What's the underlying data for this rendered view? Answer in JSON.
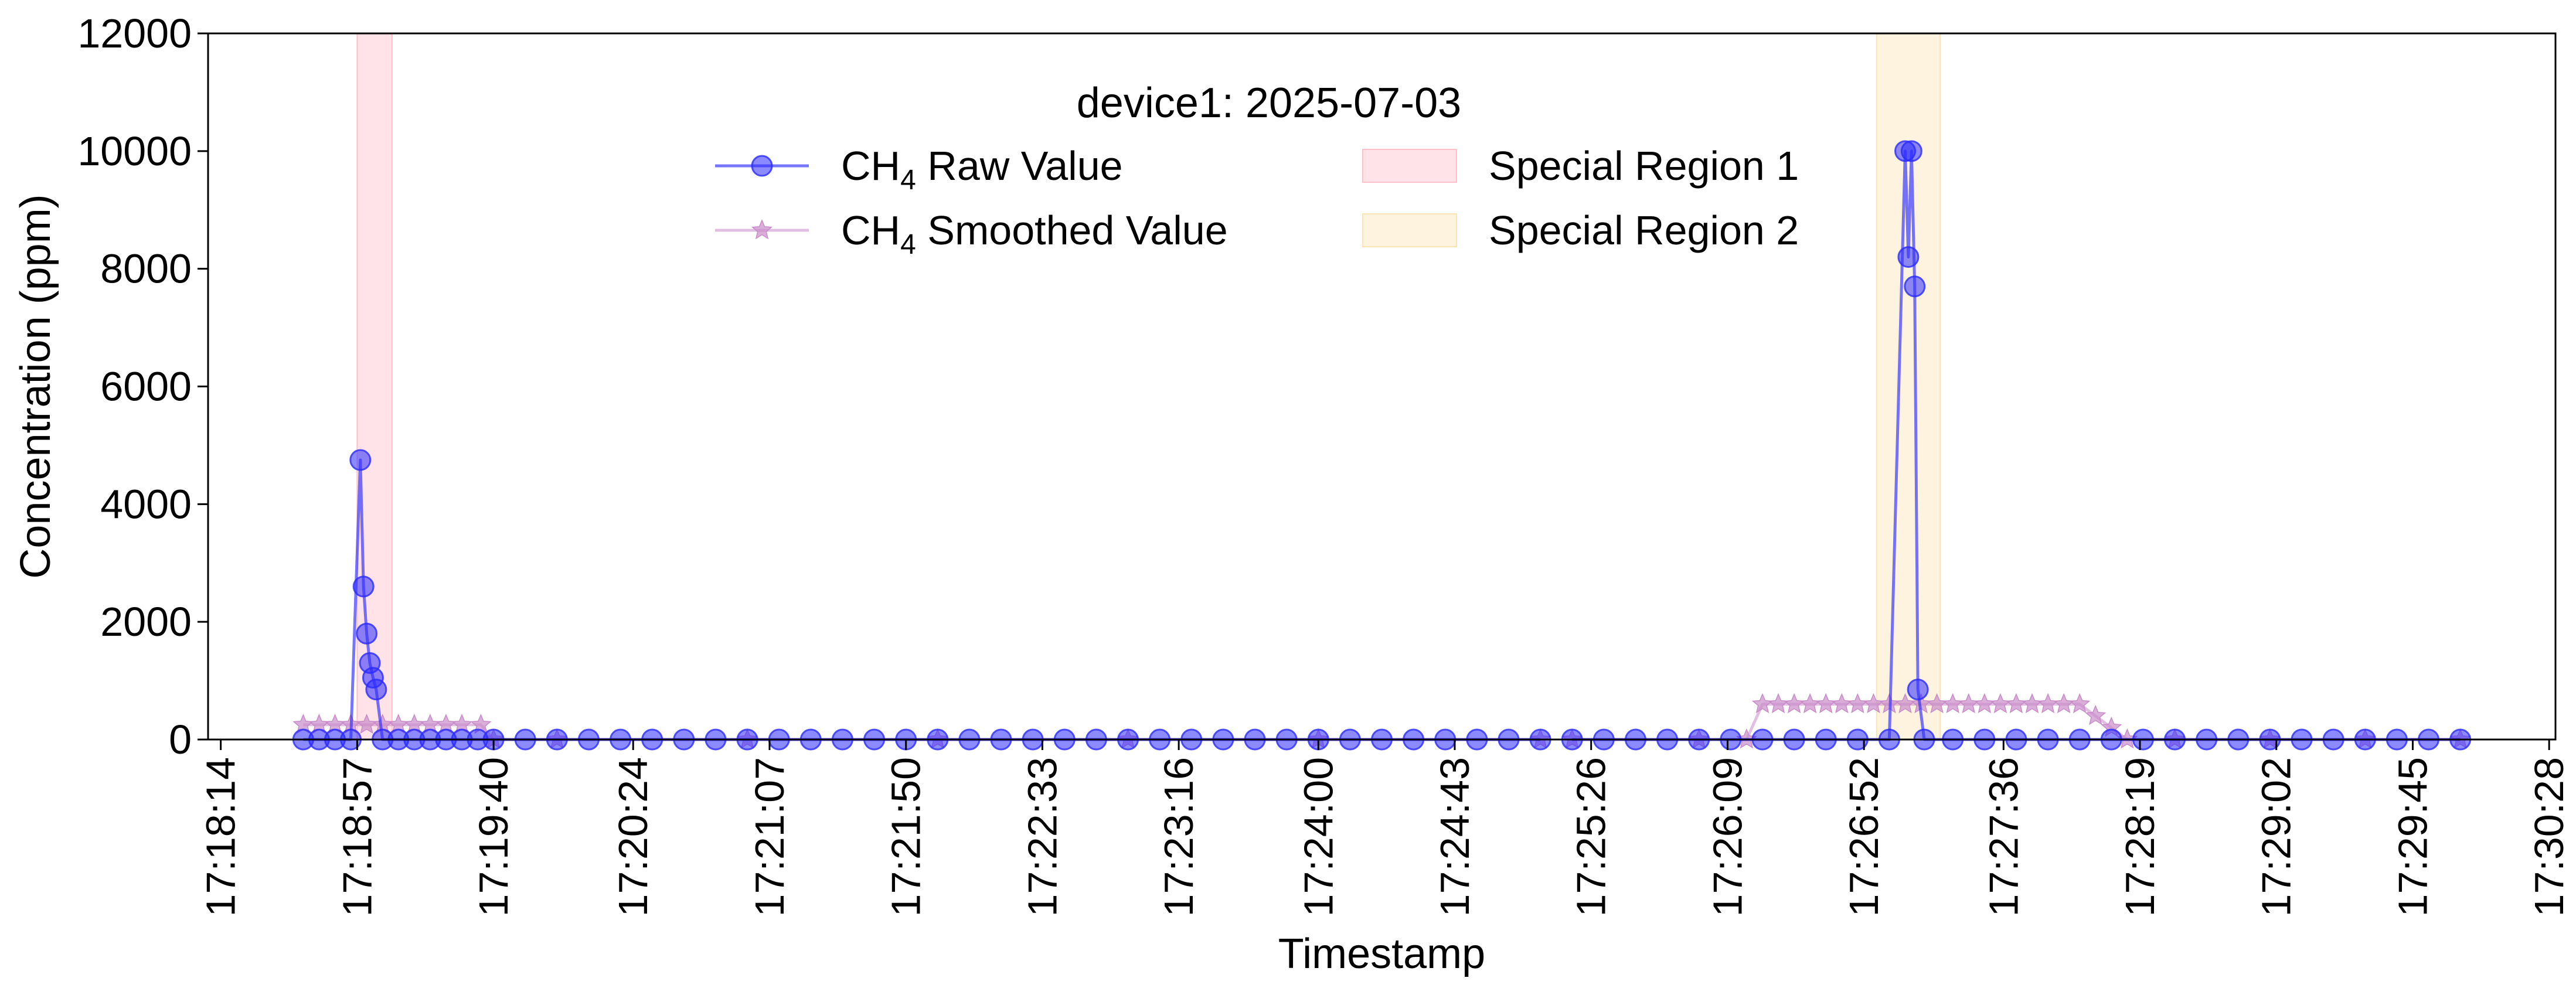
{
  "chart_data": {
    "type": "line",
    "title": "",
    "xlabel": "Timestamp",
    "ylabel": "Concentration (ppm)",
    "ylim": [
      0,
      12000
    ],
    "yticks": [
      "0",
      "2000",
      "4000",
      "6000",
      "8000",
      "10000",
      "12000"
    ],
    "xlim": [
      "17:18:10",
      "17:30:30"
    ],
    "xticks": [
      "17:18:14",
      "17:18:57",
      "17:19:40",
      "17:20:24",
      "17:21:07",
      "17:21:50",
      "17:22:33",
      "17:23:16",
      "17:24:00",
      "17:24:43",
      "17:25:26",
      "17:26:09",
      "17:26:52",
      "17:27:36",
      "17:28:19",
      "17:29:02",
      "17:29:45",
      "17:30:28"
    ],
    "grid": false,
    "legend": {
      "title": "device1: 2025-07-03",
      "placement": "upper-center",
      "columns": 2,
      "entries": [
        {
          "prefix": "CH",
          "sub": "4",
          "suffix": " Raw Value",
          "kind": "line-circle",
          "color": "#2b2bff"
        },
        {
          "prefix": "CH",
          "sub": "4",
          "suffix": "  Smoothed Value",
          "kind": "line-star",
          "color": "#c98bc9"
        },
        {
          "label": "Special Region 1",
          "kind": "patch",
          "color": "#ffc0cb"
        },
        {
          "label": "Special Region 2",
          "kind": "patch",
          "color": "#fde4b6"
        }
      ]
    },
    "regions": [
      {
        "name": "Special Region 1",
        "start": "17:18:57",
        "end": "17:19:08",
        "color": "#ffc0cb"
      },
      {
        "name": "Special Region 2",
        "start": "17:26:56",
        "end": "17:27:16",
        "color": "#fde4b6"
      }
    ],
    "series": [
      {
        "name": "CH4 Raw Value",
        "color": "#2b2bff",
        "marker": "circle",
        "segments": [
          [
            [
              "17:18:40",
              0
            ],
            [
              "17:18:45",
              0
            ],
            [
              "17:18:50",
              0
            ],
            [
              "17:18:55",
              0
            ],
            [
              "17:18:58",
              4750
            ],
            [
              "17:18:59",
              2600
            ],
            [
              "17:19:00",
              1800
            ],
            [
              "17:19:01",
              1300
            ],
            [
              "17:19:02",
              1050
            ],
            [
              "17:19:03",
              850
            ],
            [
              "17:19:05",
              0
            ],
            [
              "17:19:10",
              0
            ],
            [
              "17:19:15",
              0
            ],
            [
              "17:19:20",
              0
            ],
            [
              "17:19:25",
              0
            ],
            [
              "17:19:30",
              0
            ],
            [
              "17:19:35",
              0
            ],
            [
              "17:19:40",
              0
            ],
            [
              "17:19:50",
              0
            ],
            [
              "17:20:00",
              0
            ],
            [
              "17:20:10",
              0
            ],
            [
              "17:20:20",
              0
            ],
            [
              "17:20:30",
              0
            ],
            [
              "17:20:40",
              0
            ],
            [
              "17:20:50",
              0
            ],
            [
              "17:21:00",
              0
            ],
            [
              "17:21:10",
              0
            ],
            [
              "17:21:20",
              0
            ],
            [
              "17:21:30",
              0
            ],
            [
              "17:21:40",
              0
            ],
            [
              "17:21:50",
              0
            ],
            [
              "17:22:00",
              0
            ],
            [
              "17:22:10",
              0
            ],
            [
              "17:22:20",
              0
            ],
            [
              "17:22:30",
              0
            ],
            [
              "17:22:40",
              0
            ],
            [
              "17:22:50",
              0
            ],
            [
              "17:23:00",
              0
            ],
            [
              "17:23:10",
              0
            ],
            [
              "17:23:20",
              0
            ],
            [
              "17:23:30",
              0
            ],
            [
              "17:23:40",
              0
            ],
            [
              "17:23:50",
              0
            ],
            [
              "17:24:00",
              0
            ],
            [
              "17:24:10",
              0
            ],
            [
              "17:24:20",
              0
            ],
            [
              "17:24:30",
              0
            ],
            [
              "17:24:40",
              0
            ],
            [
              "17:24:50",
              0
            ],
            [
              "17:25:00",
              0
            ],
            [
              "17:25:10",
              0
            ]
          ],
          [
            [
              "17:25:20",
              0
            ],
            [
              "17:25:30",
              0
            ],
            [
              "17:25:40",
              0
            ],
            [
              "17:25:50",
              0
            ],
            [
              "17:26:00",
              0
            ],
            [
              "17:26:10",
              0
            ],
            [
              "17:26:20",
              0
            ],
            [
              "17:26:30",
              0
            ],
            [
              "17:26:40",
              0
            ],
            [
              "17:26:50",
              0
            ],
            [
              "17:27:00",
              0
            ],
            [
              "17:27:05",
              10000
            ],
            [
              "17:27:06",
              8200
            ],
            [
              "17:27:07",
              10000
            ],
            [
              "17:27:08",
              7700
            ],
            [
              "17:27:09",
              850
            ],
            [
              "17:27:11",
              0
            ],
            [
              "17:27:20",
              0
            ],
            [
              "17:27:30",
              0
            ],
            [
              "17:27:40",
              0
            ],
            [
              "17:27:50",
              0
            ],
            [
              "17:28:00",
              0
            ],
            [
              "17:28:10",
              0
            ],
            [
              "17:28:20",
              0
            ],
            [
              "17:28:30",
              0
            ],
            [
              "17:28:40",
              0
            ],
            [
              "17:28:50",
              0
            ],
            [
              "17:29:00",
              0
            ],
            [
              "17:29:10",
              0
            ],
            [
              "17:29:20",
              0
            ],
            [
              "17:29:30",
              0
            ],
            [
              "17:29:40",
              0
            ],
            [
              "17:29:50",
              0
            ],
            [
              "17:30:00",
              0
            ]
          ]
        ]
      },
      {
        "name": "CH4 Smoothed Value",
        "color": "#c98bc9",
        "marker": "star",
        "segments": [
          [
            [
              "17:18:40",
              250
            ],
            [
              "17:18:45",
              250
            ],
            [
              "17:18:50",
              250
            ],
            [
              "17:18:55",
              250
            ],
            [
              "17:19:00",
              250
            ],
            [
              "17:19:05",
              250
            ],
            [
              "17:19:10",
              250
            ],
            [
              "17:19:15",
              250
            ],
            [
              "17:19:20",
              250
            ],
            [
              "17:19:25",
              250
            ],
            [
              "17:19:30",
              250
            ],
            [
              "17:19:36",
              250
            ],
            [
              "17:19:40",
              0
            ],
            [
              "17:20:00",
              0
            ],
            [
              "17:21:00",
              0
            ],
            [
              "17:22:00",
              0
            ],
            [
              "17:23:00",
              0
            ],
            [
              "17:24:00",
              0
            ],
            [
              "17:25:10",
              0
            ]
          ],
          [
            [
              "17:25:20",
              0
            ],
            [
              "17:26:00",
              0
            ],
            [
              "17:26:15",
              0
            ],
            [
              "17:26:20",
              600
            ],
            [
              "17:26:25",
              600
            ],
            [
              "17:26:30",
              600
            ],
            [
              "17:26:35",
              600
            ],
            [
              "17:26:40",
              600
            ],
            [
              "17:26:45",
              600
            ],
            [
              "17:26:50",
              600
            ],
            [
              "17:26:55",
              600
            ],
            [
              "17:27:00",
              600
            ],
            [
              "17:27:05",
              600
            ],
            [
              "17:27:10",
              600
            ],
            [
              "17:27:15",
              600
            ],
            [
              "17:27:20",
              600
            ],
            [
              "17:27:25",
              600
            ],
            [
              "17:27:30",
              600
            ],
            [
              "17:27:35",
              600
            ],
            [
              "17:27:40",
              600
            ],
            [
              "17:27:45",
              600
            ],
            [
              "17:27:50",
              600
            ],
            [
              "17:27:55",
              600
            ],
            [
              "17:28:00",
              600
            ],
            [
              "17:28:05",
              400
            ],
            [
              "17:28:10",
              200
            ],
            [
              "17:28:15",
              0
            ],
            [
              "17:28:30",
              0
            ],
            [
              "17:29:00",
              0
            ],
            [
              "17:29:30",
              0
            ],
            [
              "17:30:00",
              0
            ]
          ]
        ]
      }
    ]
  }
}
